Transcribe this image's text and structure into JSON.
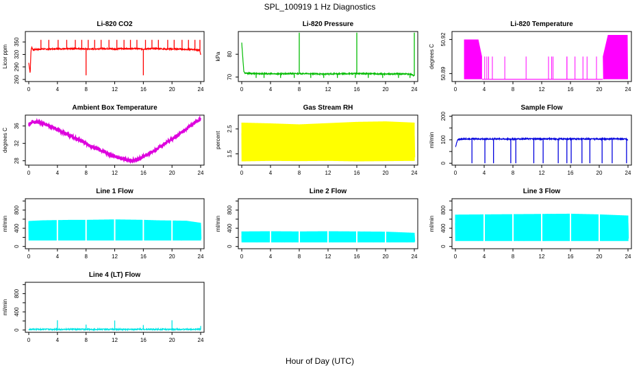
{
  "figure": {
    "title": "SPL_100919  1 Hz Diagnostics",
    "xlabel": "Hour of Day (UTC)"
  },
  "chart_data": [
    {
      "type": "line",
      "title": "Li-820 CO2",
      "ylabel": "Licor ppm",
      "color": "#ff0000",
      "xlim": [
        0,
        24
      ],
      "ylim": [
        255,
        375
      ],
      "yticks": [
        260,
        290,
        320,
        350
      ],
      "ytick_labels": [
        "260",
        "290",
        "320",
        "350"
      ],
      "series": [
        {
          "x": [
            0,
            0.2,
            0.3,
            0.4,
            0.6,
            1,
            2,
            3,
            4,
            5,
            6,
            7,
            8,
            9,
            10,
            11,
            12,
            13,
            14,
            15,
            16,
            17,
            18,
            19,
            20,
            21,
            22,
            23,
            23.9,
            24
          ],
          "values": [
            300,
            275,
            325,
            338,
            331,
            332,
            333,
            333,
            334,
            333,
            334,
            334,
            333,
            333,
            334,
            334,
            333,
            334,
            334,
            334,
            333,
            334,
            334,
            333,
            333,
            333,
            332,
            332,
            330,
            318
          ]
        }
      ],
      "spikes_high_x": [
        1.7,
        2.8,
        4.1,
        5.3,
        6.5,
        7.4,
        8.3,
        9.2,
        10.1,
        11.2,
        12.3,
        13.3,
        14.2,
        15.1,
        16.3,
        17.2,
        18.1,
        19.4,
        20.3,
        21.4,
        22.3,
        23.2,
        23.9
      ],
      "spike_high_value": 355,
      "spikes_low_x": [
        8,
        16
      ],
      "spike_low_value": 270
    },
    {
      "type": "line",
      "title": "Li-820 Pressure",
      "ylabel": "kPa",
      "color": "#00bb00",
      "xlim": [
        0,
        24
      ],
      "ylim": [
        68,
        90
      ],
      "yticks": [
        70,
        80
      ],
      "ytick_labels": [
        "70",
        "80"
      ],
      "series": [
        {
          "x": [
            0,
            0.2,
            0.3,
            0.5,
            2,
            4,
            6,
            8,
            10,
            12,
            14,
            16,
            18,
            20,
            22,
            23.5,
            24
          ],
          "values": [
            85,
            76,
            72.2,
            71.6,
            71.5,
            71.4,
            71.4,
            71.5,
            71.4,
            71.3,
            71.4,
            71.5,
            71.4,
            71.3,
            71.4,
            71.3,
            70.5
          ]
        }
      ],
      "spikes_high_x": [
        8,
        16,
        24
      ],
      "spike_high_value": 89.5,
      "spikes_low_x": [
        2,
        3.1,
        5.4,
        7.3,
        9.6,
        11.4,
        13.3,
        15.8,
        17.6,
        19.6,
        21.8,
        23.4
      ],
      "spike_low_value": 69.6
    },
    {
      "type": "band",
      "title": "Li-820 Temperature",
      "ylabel": "degrees C",
      "color": "#ff00ff",
      "xlim": [
        0,
        24
      ],
      "ylim": [
        50.883,
        50.927
      ],
      "yticks": [
        50.89,
        50.92
      ],
      "ytick_labels": [
        "50.89",
        "50.92"
      ],
      "band_upper": {
        "x": [
          1.2,
          3.2,
          3.7,
          20.5,
          21.2,
          24
        ],
        "values": [
          50.92,
          50.92,
          50.905,
          50.905,
          50.924,
          50.924
        ]
      },
      "band_lower": {
        "x": [
          1.2,
          24
        ],
        "values": [
          50.885,
          50.885
        ]
      },
      "note_x_range_shaded": [
        [
          1.2,
          3.7
        ],
        [
          20.5,
          24
        ]
      ]
    },
    {
      "type": "line",
      "title": "Ambient Box Temperature",
      "ylabel": "degrees C",
      "color": "#dd00dd",
      "xlim": [
        0,
        24
      ],
      "ylim": [
        27,
        38.5
      ],
      "yticks": [
        28,
        32,
        36
      ],
      "ytick_labels": [
        "28",
        "32",
        "36"
      ],
      "series": [
        {
          "x": [
            0,
            0.5,
            1,
            1.5,
            2,
            3,
            4,
            5,
            6,
            7,
            8,
            9,
            10,
            11,
            12,
            13,
            14,
            14.5,
            15,
            16,
            17,
            18,
            19,
            20,
            21,
            22,
            23,
            24
          ],
          "values": [
            36.4,
            36.8,
            36.9,
            36.8,
            36.6,
            35.9,
            35.2,
            34.4,
            33.6,
            32.8,
            32.0,
            31.1,
            30.4,
            29.7,
            29.1,
            28.5,
            28.1,
            28.0,
            28.2,
            28.9,
            29.8,
            30.8,
            31.9,
            33.0,
            34.1,
            35.3,
            36.5,
            37.6
          ]
        }
      ]
    },
    {
      "type": "band",
      "title": "Gas Stream RH",
      "ylabel": "percent",
      "color": "#ffff00",
      "xlim": [
        0,
        24
      ],
      "ylim": [
        1.05,
        3.05
      ],
      "yticks": [
        1.5,
        2.5
      ],
      "ytick_labels": [
        "1.5",
        "2.5"
      ],
      "band_upper": {
        "x": [
          0,
          4,
          8,
          12,
          16,
          20,
          24
        ],
        "values": [
          2.75,
          2.72,
          2.68,
          2.73,
          2.78,
          2.8,
          2.75
        ]
      },
      "band_lower": {
        "x": [
          0,
          4,
          8,
          12,
          16,
          20,
          24
        ],
        "values": [
          1.2,
          1.22,
          1.21,
          1.22,
          1.2,
          1.21,
          1.22
        ]
      }
    },
    {
      "type": "line",
      "title": "Sample Flow",
      "ylabel": "ml/min",
      "color": "#0000dd",
      "xlim": [
        0,
        24
      ],
      "ylim": [
        -8,
        205
      ],
      "yticks": [
        0,
        50,
        100,
        150,
        200
      ],
      "ytick_labels": [
        "0",
        "",
        "100",
        "",
        "200"
      ],
      "series": [
        {
          "x": [
            0,
            0.3,
            0.6,
            2,
            4,
            6,
            8,
            10,
            12,
            14,
            16,
            18,
            20,
            22,
            23.8,
            24
          ],
          "values": [
            70,
            98,
            103,
            104,
            103,
            104,
            103,
            104,
            104,
            103,
            104,
            104,
            103,
            104,
            103,
            98
          ]
        }
      ],
      "spikes_low_x": [
        2.3,
        4.1,
        5.3,
        7.7,
        8.4,
        10.9,
        12.2,
        14.3,
        15.5,
        16.1,
        17.6,
        18.7,
        20.4,
        21.8,
        23.8
      ],
      "spike_low_value": 0
    },
    {
      "type": "band",
      "title": "Line 1 Flow",
      "ylabel": "ml/min",
      "color": "#00ffff",
      "xlim": [
        0,
        24
      ],
      "ylim": [
        -50,
        1050
      ],
      "yticks": [
        0,
        200,
        400,
        600,
        800,
        1000
      ],
      "ytick_labels": [
        "0",
        "",
        "400",
        "",
        "800",
        ""
      ],
      "band_upper": {
        "x": [
          0,
          2,
          4,
          6,
          8,
          10,
          12,
          14,
          16,
          18,
          20,
          22,
          24
        ],
        "values": [
          560,
          575,
          580,
          585,
          585,
          590,
          595,
          590,
          585,
          575,
          570,
          565,
          520
        ]
      },
      "band_lower": {
        "x": [
          0,
          24
        ],
        "values": [
          130,
          130
        ]
      },
      "gaps_x": [
        4,
        8,
        12,
        16,
        20
      ]
    },
    {
      "type": "band",
      "title": "Line 2 Flow",
      "ylabel": "ml/min",
      "color": "#00ffff",
      "xlim": [
        0,
        24
      ],
      "ylim": [
        -50,
        1050
      ],
      "yticks": [
        0,
        200,
        400,
        600,
        800,
        1000
      ],
      "ytick_labels": [
        "0",
        "",
        "400",
        "",
        "800",
        ""
      ],
      "band_upper": {
        "x": [
          0,
          4,
          8,
          12,
          16,
          20,
          24
        ],
        "values": [
          330,
          335,
          330,
          335,
          330,
          325,
          300
        ]
      },
      "band_lower": {
        "x": [
          0,
          24
        ],
        "values": [
          90,
          90
        ]
      },
      "gaps_x": [
        4,
        8,
        12,
        16,
        20
      ]
    },
    {
      "type": "band",
      "title": "Line 3 Flow",
      "ylabel": "ml/min",
      "color": "#00ffff",
      "xlim": [
        0,
        24
      ],
      "ylim": [
        -50,
        1050
      ],
      "yticks": [
        0,
        200,
        400,
        600,
        800,
        1000
      ],
      "ytick_labels": [
        "0",
        "",
        "400",
        "",
        "800",
        ""
      ],
      "band_upper": {
        "x": [
          0,
          4,
          8,
          12,
          16,
          20,
          24
        ],
        "values": [
          700,
          705,
          710,
          715,
          720,
          705,
          680
        ]
      },
      "band_lower": {
        "x": [
          0,
          24
        ],
        "values": [
          120,
          120
        ]
      },
      "gaps_x": [
        4,
        8,
        12,
        16,
        20
      ]
    },
    {
      "type": "line",
      "title": "Line 4 (LT) Flow",
      "ylabel": "ml/min",
      "color": "#00e5e5",
      "xlim": [
        0,
        24
      ],
      "ylim": [
        -50,
        1050
      ],
      "yticks": [
        0,
        200,
        400,
        600,
        800,
        1000
      ],
      "ytick_labels": [
        "0",
        "",
        "400",
        "",
        "800",
        ""
      ],
      "series": [
        {
          "x": [
            0,
            24
          ],
          "values": [
            15,
            15
          ]
        }
      ],
      "spikes_high_x": [
        4,
        8,
        12,
        16,
        20,
        24
      ],
      "spikes_high_values": [
        215,
        120,
        210,
        110,
        215,
        90
      ]
    }
  ]
}
